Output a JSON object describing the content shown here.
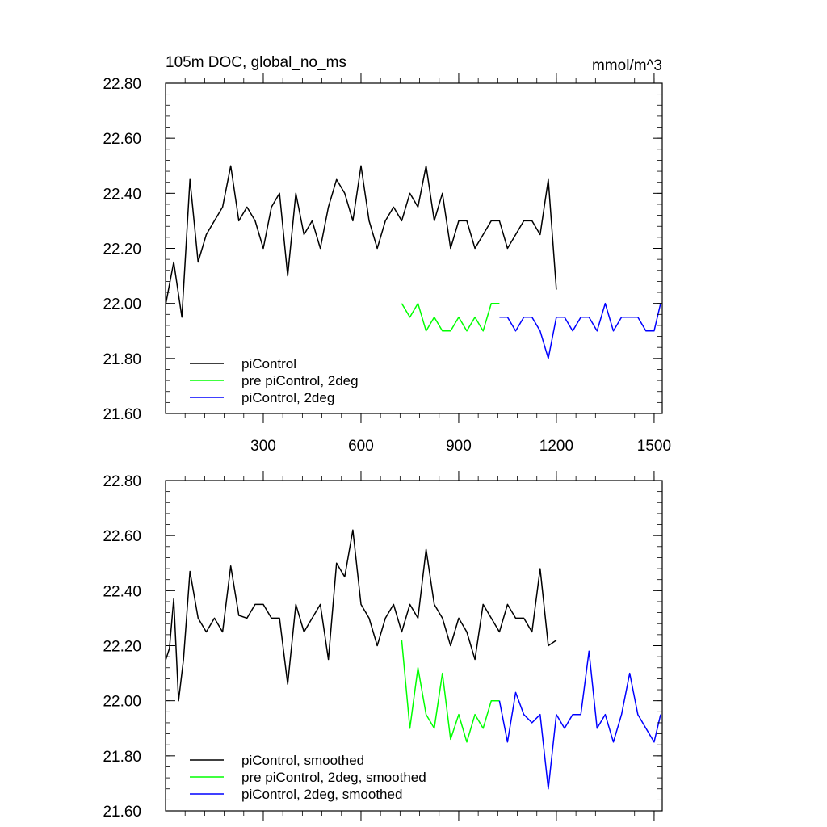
{
  "chart_data": [
    {
      "type": "line",
      "title": "105m DOC, global_no_ms",
      "units_label": "mmol/m^3",
      "xlabel": "",
      "ylabel": "",
      "xlim": [
        0,
        1525
      ],
      "ylim": [
        21.6,
        22.8
      ],
      "xticks": [
        300,
        600,
        900,
        1200,
        1500
      ],
      "xtick_labels": [
        "300",
        "600",
        "900",
        "1200",
        "1500"
      ],
      "yticks": [
        21.6,
        21.8,
        22.0,
        22.2,
        22.4,
        22.6,
        22.8
      ],
      "ytick_labels": [
        "21.60",
        "21.80",
        "22.00",
        "22.20",
        "22.40",
        "22.60",
        "22.80"
      ],
      "grid": false,
      "legend_position": "bottom-left",
      "series": [
        {
          "name": "piControl",
          "color": "#000000",
          "x": [
            1,
            25,
            50,
            75,
            100,
            125,
            150,
            175,
            200,
            225,
            250,
            275,
            300,
            325,
            350,
            375,
            400,
            425,
            450,
            475,
            500,
            525,
            550,
            575,
            600,
            625,
            650,
            675,
            700,
            725,
            750,
            775,
            800,
            825,
            850,
            875,
            900,
            925,
            950,
            975,
            1000,
            1025,
            1050,
            1075,
            1100,
            1125,
            1150,
            1175,
            1200
          ],
          "y": [
            22.0,
            22.15,
            21.95,
            22.45,
            22.15,
            22.25,
            22.3,
            22.35,
            22.5,
            22.3,
            22.35,
            22.3,
            22.2,
            22.35,
            22.4,
            22.1,
            22.4,
            22.25,
            22.3,
            22.2,
            22.35,
            22.45,
            22.4,
            22.3,
            22.5,
            22.3,
            22.2,
            22.3,
            22.35,
            22.3,
            22.4,
            22.35,
            22.5,
            22.3,
            22.4,
            22.2,
            22.3,
            22.3,
            22.2,
            22.25,
            22.3,
            22.3,
            22.2,
            22.25,
            22.3,
            22.3,
            22.25,
            22.45,
            22.05
          ]
        },
        {
          "name": "pre piControl, 2deg",
          "color": "#00ff00",
          "x": [
            725,
            750,
            775,
            800,
            825,
            850,
            875,
            900,
            925,
            950,
            975,
            1000,
            1025
          ],
          "y": [
            22.0,
            21.95,
            22.0,
            21.9,
            21.95,
            21.9,
            21.9,
            21.95,
            21.9,
            21.95,
            21.9,
            22.0,
            22.0
          ]
        },
        {
          "name": "piControl, 2deg",
          "color": "#0000ff",
          "x": [
            1025,
            1050,
            1075,
            1100,
            1125,
            1150,
            1175,
            1200,
            1225,
            1250,
            1275,
            1300,
            1325,
            1350,
            1375,
            1400,
            1425,
            1450,
            1475,
            1500,
            1520
          ],
          "y": [
            21.95,
            21.95,
            21.9,
            21.95,
            21.95,
            21.9,
            21.8,
            21.95,
            21.95,
            21.9,
            21.95,
            21.95,
            21.9,
            22.0,
            21.9,
            21.95,
            21.95,
            21.95,
            21.9,
            21.9,
            22.0
          ]
        }
      ]
    },
    {
      "type": "line",
      "title": "",
      "xlabel": "",
      "ylabel": "",
      "xlim": [
        0,
        1525
      ],
      "ylim": [
        21.6,
        22.8
      ],
      "xticks": [
        300,
        600,
        900,
        1200,
        1500
      ],
      "yticks": [
        21.6,
        21.8,
        22.0,
        22.2,
        22.4,
        22.6,
        22.8
      ],
      "ytick_labels": [
        "21.60",
        "21.80",
        "22.00",
        "22.20",
        "22.40",
        "22.60",
        "22.80"
      ],
      "grid": false,
      "legend_position": "bottom-left",
      "series": [
        {
          "name": "piControl, smoothed",
          "color": "#000000",
          "x": [
            1,
            12,
            25,
            40,
            55,
            75,
            100,
            125,
            150,
            175,
            200,
            225,
            250,
            275,
            300,
            325,
            350,
            375,
            400,
            425,
            450,
            475,
            500,
            525,
            550,
            575,
            600,
            625,
            650,
            675,
            700,
            725,
            750,
            775,
            800,
            825,
            850,
            875,
            900,
            925,
            950,
            975,
            1000,
            1025,
            1050,
            1075,
            1100,
            1125,
            1150,
            1175,
            1200
          ],
          "y": [
            22.15,
            22.19,
            22.37,
            22.0,
            22.15,
            22.47,
            22.3,
            22.25,
            22.3,
            22.25,
            22.49,
            22.31,
            22.3,
            22.35,
            22.35,
            22.3,
            22.3,
            22.06,
            22.35,
            22.25,
            22.3,
            22.35,
            22.15,
            22.5,
            22.45,
            22.62,
            22.35,
            22.3,
            22.2,
            22.3,
            22.35,
            22.25,
            22.35,
            22.3,
            22.55,
            22.35,
            22.3,
            22.2,
            22.3,
            22.25,
            22.15,
            22.35,
            22.3,
            22.25,
            22.35,
            22.3,
            22.3,
            22.25,
            22.48,
            22.2,
            22.22
          ]
        },
        {
          "name": "pre piControl, 2deg, smoothed",
          "color": "#00ff00",
          "x": [
            725,
            750,
            775,
            800,
            825,
            850,
            875,
            900,
            925,
            950,
            975,
            1000,
            1025
          ],
          "y": [
            22.22,
            21.9,
            22.12,
            21.95,
            21.9,
            22.1,
            21.86,
            21.95,
            21.85,
            21.95,
            21.9,
            22.0,
            22.0
          ]
        },
        {
          "name": "piControl, 2deg, smoothed",
          "color": "#0000ff",
          "x": [
            1025,
            1050,
            1075,
            1100,
            1125,
            1150,
            1175,
            1200,
            1225,
            1250,
            1275,
            1300,
            1325,
            1350,
            1375,
            1400,
            1425,
            1450,
            1475,
            1500,
            1520
          ],
          "y": [
            22.0,
            21.85,
            22.03,
            21.95,
            21.92,
            21.95,
            21.68,
            21.95,
            21.9,
            21.95,
            21.95,
            22.18,
            21.9,
            21.95,
            21.85,
            21.95,
            22.1,
            21.95,
            21.9,
            21.85,
            21.95
          ]
        }
      ]
    }
  ]
}
